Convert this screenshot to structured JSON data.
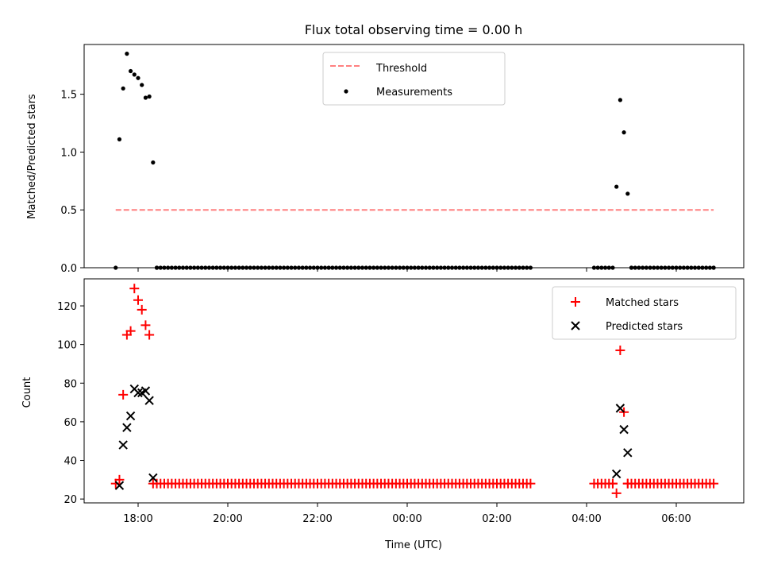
{
  "title": "Flux total observing time = 0.00 h",
  "xlabel": "Time (UTC)",
  "x_tick_labels": [
    "18:00",
    "20:00",
    "22:00",
    "00:00",
    "02:00",
    "04:00",
    "06:00"
  ],
  "colors": {
    "threshold": "#ff8080",
    "measurements": "#000000",
    "matched": "#ff0000",
    "predicted": "#000000"
  },
  "chart_data": [
    {
      "type": "scatter",
      "ylabel": "Matched/Predicted stars",
      "ylim": [
        0,
        1.93
      ],
      "y_ticks": [
        "0.0",
        "0.5",
        "1.0",
        "1.5"
      ],
      "legend_position": "top-center",
      "threshold": {
        "name": "Threshold",
        "value": 0.5,
        "x_range": [
          "17:30",
          "06:50"
        ]
      },
      "series": [
        {
          "name": "Measurements",
          "points": [
            [
              "17:30",
              0.0
            ],
            [
              "17:35",
              1.11
            ],
            [
              "17:40",
              1.55
            ],
            [
              "17:45",
              1.85
            ],
            [
              "17:50",
              1.7
            ],
            [
              "17:55",
              1.67
            ],
            [
              "18:00",
              1.64
            ],
            [
              "18:05",
              1.58
            ],
            [
              "18:10",
              1.47
            ],
            [
              "18:15",
              1.48
            ],
            [
              "18:20",
              0.91
            ],
            [
              "18:25",
              0.0
            ],
            [
              "04:10",
              0.0
            ],
            [
              "04:15",
              0.0
            ],
            [
              "04:20",
              0.0
            ],
            [
              "04:25",
              0.0
            ],
            [
              "04:30",
              0.0
            ],
            [
              "04:35",
              0.0
            ],
            [
              "04:40",
              0.7
            ],
            [
              "04:45",
              1.45
            ],
            [
              "04:50",
              1.17
            ],
            [
              "04:55",
              0.64
            ],
            [
              "05:00",
              0.0
            ],
            [
              "06:50",
              0.0
            ]
          ],
          "zero_runs": [
            [
              "18:25",
              "02:45"
            ],
            [
              "05:00",
              "06:50"
            ]
          ]
        }
      ]
    },
    {
      "type": "scatter",
      "ylabel": "Count",
      "ylim": [
        18,
        134
      ],
      "y_ticks": [
        "20",
        "40",
        "60",
        "80",
        "100",
        "120"
      ],
      "legend_position": "top-right",
      "series": [
        {
          "name": "Matched stars",
          "marker": "plus",
          "points": [
            [
              "17:30",
              28
            ],
            [
              "17:35",
              30
            ],
            [
              "17:40",
              74
            ],
            [
              "17:45",
              105
            ],
            [
              "17:50",
              107
            ],
            [
              "17:55",
              129
            ],
            [
              "18:00",
              123
            ],
            [
              "18:05",
              118
            ],
            [
              "18:10",
              110
            ],
            [
              "18:15",
              105
            ],
            [
              "04:35",
              28
            ],
            [
              "04:40",
              23
            ],
            [
              "04:45",
              97
            ],
            [
              "04:50",
              65
            ],
            [
              "04:55",
              28
            ]
          ],
          "baseline": {
            "value": 28,
            "runs": [
              [
                "18:20",
                "02:45"
              ],
              [
                "04:10",
                "04:35"
              ],
              [
                "04:55",
                "06:50"
              ]
            ]
          }
        },
        {
          "name": "Predicted stars",
          "marker": "x",
          "points": [
            [
              "17:35",
              27
            ],
            [
              "17:40",
              48
            ],
            [
              "17:45",
              57
            ],
            [
              "17:50",
              63
            ],
            [
              "17:55",
              77
            ],
            [
              "18:00",
              75
            ],
            [
              "18:05",
              75
            ],
            [
              "18:10",
              76
            ],
            [
              "18:15",
              71
            ],
            [
              "18:20",
              31
            ],
            [
              "04:40",
              33
            ],
            [
              "04:45",
              67
            ],
            [
              "04:50",
              56
            ],
            [
              "04:55",
              44
            ]
          ]
        }
      ]
    }
  ]
}
